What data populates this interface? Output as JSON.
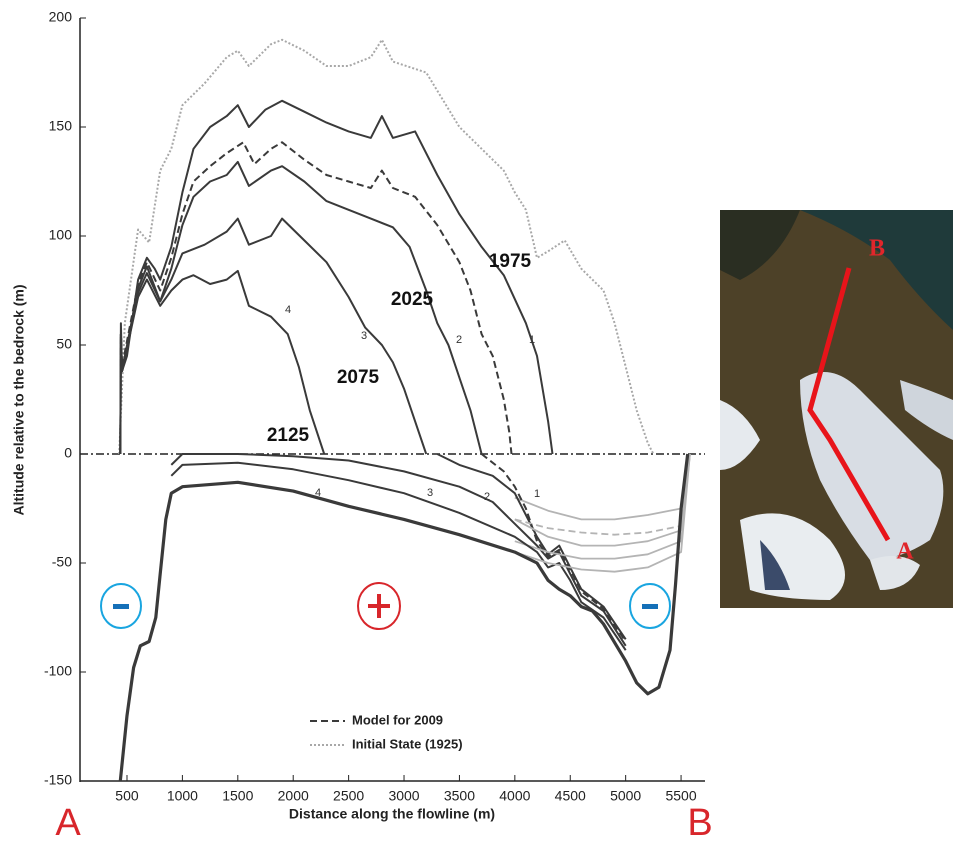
{
  "chart_data": {
    "type": "line",
    "xlabel": "Distance along the flowline (m)",
    "ylabel": "Altitude relative to the bedrock (m)",
    "xlim": [
      76,
      5716
    ],
    "ylim": [
      -150,
      200
    ],
    "xticks": [
      500,
      1000,
      1500,
      2000,
      2500,
      3000,
      3500,
      4000,
      4500,
      5000,
      5500
    ],
    "yticks": [
      -150,
      -100,
      -50,
      0,
      50,
      100,
      150,
      200
    ],
    "reference_line": 0,
    "start_label": "A",
    "end_label": "B",
    "series": [
      {
        "name": "Initial State (1925)",
        "color": "#a8a8a8",
        "style": "dotted",
        "legend": true,
        "x": [
          430,
          480,
          600,
          700,
          800,
          900,
          1000,
          1200,
          1400,
          1500,
          1600,
          1800,
          1900,
          2100,
          2300,
          2500,
          2700,
          2800,
          2900,
          3200,
          3500,
          3700,
          3900,
          4000,
          4100,
          4200,
          4300,
          4450,
          4600,
          4800,
          4900,
          5000,
          5100,
          5200,
          5250
        ],
        "values": [
          0,
          60,
          103,
          97,
          130,
          140,
          160,
          170,
          182,
          185,
          178,
          188,
          190,
          185,
          178,
          178,
          182,
          190,
          180,
          175,
          150,
          140,
          130,
          120,
          112,
          90,
          93,
          98,
          85,
          75,
          60,
          40,
          20,
          5,
          0
        ]
      },
      {
        "name": "1975",
        "number": "1",
        "color": "#3a3a3a",
        "style": "solid",
        "x": [
          440,
          445,
          455,
          500,
          600,
          680,
          750,
          800,
          900,
          1000,
          1100,
          1250,
          1400,
          1500,
          1600,
          1750,
          1900,
          2100,
          2300,
          2500,
          2700,
          2800,
          2900,
          3100,
          3300,
          3500,
          3700,
          3900,
          4100,
          4200,
          4300,
          4340
        ],
        "values": [
          0,
          60,
          38,
          45,
          80,
          90,
          85,
          80,
          95,
          120,
          140,
          150,
          155,
          160,
          150,
          158,
          162,
          157,
          152,
          148,
          145,
          155,
          145,
          148,
          128,
          110,
          95,
          82,
          60,
          45,
          15,
          0
        ],
        "bed_x": [
          3300,
          3500,
          3800,
          4000,
          4200,
          4300,
          4400,
          4500,
          4600,
          4800,
          5000
        ],
        "bed_values": [
          0,
          -5,
          -10,
          -18,
          -38,
          -46,
          -42,
          -52,
          -62,
          -70,
          -85
        ],
        "tail_x": [
          4000,
          4300,
          4600,
          4900,
          5200,
          5500,
          5580
        ],
        "tail_values": [
          -20,
          -26,
          -30,
          -30,
          -28,
          -25,
          0
        ]
      },
      {
        "name": "Model for 2009",
        "color": "#3a3a3a",
        "style": "dashed",
        "legend": true,
        "x": [
          440,
          445,
          455,
          600,
          680,
          800,
          900,
          1000,
          1100,
          1250,
          1400,
          1550,
          1650,
          1800,
          1900,
          2100,
          2300,
          2500,
          2700,
          2800,
          2900,
          3100,
          3300,
          3500,
          3600,
          3700,
          3800,
          3900,
          3950,
          3970
        ],
        "values": [
          0,
          55,
          40,
          78,
          88,
          75,
          90,
          110,
          125,
          132,
          138,
          143,
          133,
          140,
          143,
          135,
          128,
          125,
          122,
          130,
          122,
          118,
          105,
          88,
          75,
          55,
          45,
          25,
          10,
          0
        ],
        "bed_x": [
          3700,
          3900,
          4000,
          4100,
          4200,
          4300,
          4400,
          4500,
          4600,
          4800,
          5000
        ],
        "bed_values": [
          0,
          -8,
          -15,
          -25,
          -40,
          -47,
          -44,
          -53,
          -63,
          -71,
          -86
        ],
        "tail_x": [
          4000,
          4300,
          4600,
          4900,
          5200,
          5500,
          5580
        ],
        "tail_values": [
          -30,
          -34,
          -36,
          -37,
          -36,
          -33,
          0
        ]
      },
      {
        "name": "2025",
        "number": "2",
        "color": "#3a3a3a",
        "style": "solid",
        "x": [
          440,
          445,
          455,
          600,
          680,
          800,
          900,
          1000,
          1100,
          1250,
          1400,
          1500,
          1600,
          1800,
          1900,
          2100,
          2300,
          2500,
          2700,
          2900,
          3050,
          3200,
          3300,
          3400,
          3500,
          3600,
          3700
        ],
        "values": [
          0,
          55,
          38,
          76,
          86,
          70,
          85,
          105,
          118,
          125,
          128,
          134,
          123,
          130,
          132,
          125,
          116,
          112,
          108,
          104,
          95,
          75,
          60,
          50,
          35,
          20,
          0
        ],
        "bed_x": [
          900,
          1000,
          1500,
          2000,
          2500,
          3000,
          3500,
          3800,
          4000,
          4200,
          4300,
          4400,
          4500,
          4600,
          4800,
          5000
        ],
        "bed_values": [
          -5,
          0,
          0,
          -1,
          -3,
          -8,
          -15,
          -22,
          -32,
          -42,
          -48,
          -45,
          -55,
          -65,
          -72,
          -88
        ],
        "tail_x": [
          4000,
          4300,
          4600,
          4900,
          5200,
          5500,
          5580
        ],
        "tail_values": [
          -30,
          -38,
          -42,
          -42,
          -40,
          -35,
          0
        ]
      },
      {
        "name": "2075",
        "number": "3",
        "color": "#3a3a3a",
        "style": "solid",
        "x": [
          440,
          445,
          455,
          600,
          680,
          800,
          900,
          1000,
          1200,
          1400,
          1500,
          1600,
          1800,
          1900,
          2100,
          2300,
          2500,
          2650,
          2800,
          2900,
          3000,
          3100,
          3200
        ],
        "values": [
          0,
          55,
          38,
          74,
          83,
          70,
          80,
          92,
          96,
          102,
          108,
          96,
          100,
          108,
          98,
          88,
          72,
          58,
          50,
          42,
          30,
          15,
          0
        ],
        "bed_x": [
          900,
          1000,
          1500,
          2000,
          2500,
          3000,
          3500,
          4000,
          4200,
          4300,
          4400,
          4500,
          4600,
          4800,
          5000
        ],
        "bed_values": [
          -10,
          -5,
          -4,
          -7,
          -12,
          -18,
          -27,
          -38,
          -45,
          -52,
          -50,
          -58,
          -68,
          -75,
          -90
        ],
        "tail_x": [
          4000,
          4300,
          4600,
          4900,
          5200,
          5500,
          5580
        ],
        "tail_values": [
          -40,
          -45,
          -48,
          -48,
          -46,
          -40,
          0
        ]
      },
      {
        "name": "2125",
        "number": "4",
        "color": "#3a3a3a",
        "style": "solid",
        "x": [
          440,
          445,
          455,
          600,
          680,
          800,
          900,
          1000,
          1100,
          1250,
          1400,
          1500,
          1600,
          1800,
          1950,
          2050,
          2150,
          2280
        ],
        "values": [
          0,
          55,
          38,
          72,
          80,
          68,
          75,
          80,
          82,
          78,
          80,
          84,
          68,
          63,
          55,
          40,
          20,
          0
        ],
        "bed_x": [
          440,
          500,
          560,
          620,
          700,
          760,
          800,
          850,
          900,
          1000,
          1500,
          2000,
          2500,
          3000,
          3500,
          4000,
          4200,
          4300,
          4400,
          4500,
          4600,
          4700,
          4800,
          5000,
          5100,
          5200,
          5300,
          5400,
          5450,
          5500,
          5560
        ],
        "bed_values": [
          -150,
          -120,
          -98,
          -88,
          -86,
          -75,
          -55,
          -30,
          -18,
          -15,
          -13,
          -17,
          -24,
          -30,
          -37,
          -45,
          -50,
          -58,
          -62,
          -65,
          -70,
          -72,
          -78,
          -95,
          -105,
          -110,
          -107,
          -90,
          -60,
          -25,
          0
        ],
        "tail_x": [
          4000,
          4300,
          4600,
          4900,
          5200,
          5500,
          5580
        ],
        "tail_values": [
          -45,
          -50,
          -53,
          -54,
          -52,
          -45,
          0
        ]
      }
    ]
  }
}
